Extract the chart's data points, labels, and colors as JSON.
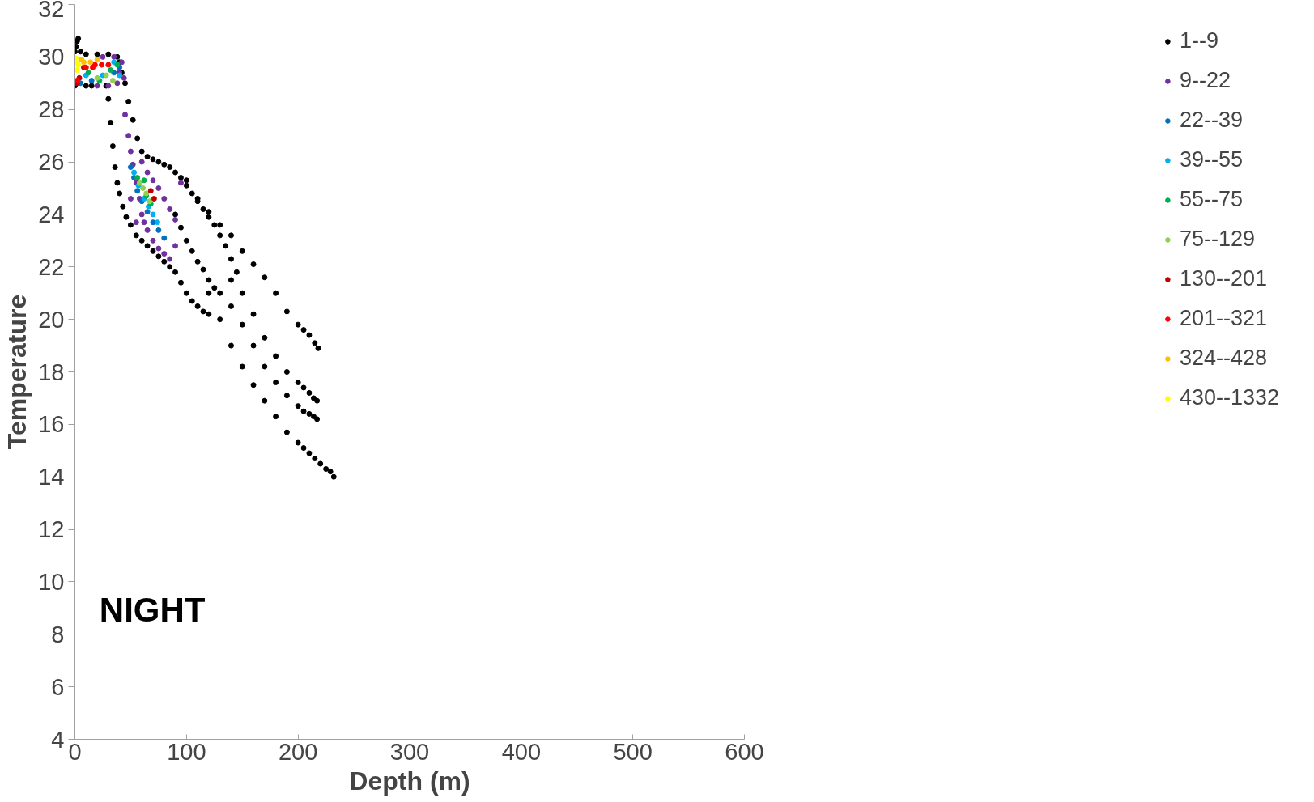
{
  "chart_data": {
    "type": "scatter",
    "xlabel": "Depth (m)",
    "ylabel": "Temperature",
    "xlim": [
      0,
      600
    ],
    "ylim": [
      4,
      32
    ],
    "xticks": [
      0,
      100,
      200,
      300,
      400,
      500,
      600
    ],
    "yticks": [
      4,
      6,
      8,
      10,
      12,
      14,
      16,
      18,
      20,
      22,
      24,
      26,
      28,
      30,
      32
    ],
    "grid": false,
    "legend": "right",
    "marker": "circle",
    "annotations": [
      "NIGHT"
    ],
    "series": [
      {
        "name": "1--9",
        "color": "#000000",
        "x": [
          2,
          3,
          1,
          0,
          5,
          10,
          20,
          30,
          38,
          0,
          10,
          15,
          28,
          40,
          42,
          30,
          32,
          34,
          36,
          38,
          40,
          43,
          46,
          50,
          55,
          60,
          65,
          70,
          75,
          80,
          85,
          90,
          95,
          100,
          105,
          110,
          115,
          120,
          45,
          48,
          52,
          56,
          60,
          65,
          70,
          75,
          80,
          85,
          90,
          95,
          100,
          105,
          110,
          115,
          120,
          125,
          130,
          135,
          140,
          145,
          90,
          95,
          100,
          105,
          110,
          115,
          120,
          125,
          130,
          140,
          100,
          110,
          120,
          130,
          140,
          150,
          160,
          170,
          180,
          190,
          200,
          205,
          210,
          215,
          218,
          140,
          150,
          160,
          170,
          180,
          190,
          200,
          205,
          210,
          214,
          217,
          150,
          160,
          170,
          180,
          190,
          200,
          205,
          210,
          214,
          217,
          120,
          130,
          140,
          150,
          160,
          170,
          180,
          190,
          200,
          205,
          210,
          215,
          220,
          225,
          229,
          232
        ],
        "values": [
          30.6,
          30.7,
          30.4,
          30.2,
          30.2,
          30.1,
          30.1,
          30.1,
          30.0,
          28.9,
          28.9,
          28.9,
          28.9,
          29.8,
          29.4,
          28.4,
          27.5,
          26.6,
          25.8,
          25.2,
          24.8,
          24.3,
          23.9,
          23.6,
          23.2,
          23.0,
          22.8,
          22.6,
          22.4,
          22.2,
          22.0,
          21.8,
          21.4,
          21.0,
          20.7,
          20.5,
          20.3,
          20.2,
          29.0,
          28.3,
          27.6,
          26.9,
          26.4,
          26.2,
          26.1,
          26.0,
          25.9,
          25.8,
          25.6,
          25.4,
          25.1,
          24.8,
          24.5,
          24.2,
          23.9,
          23.6,
          23.2,
          22.8,
          22.3,
          21.8,
          24.0,
          23.5,
          23.0,
          22.6,
          22.2,
          21.9,
          21.5,
          21.2,
          21.0,
          20.5,
          25.3,
          24.6,
          24.1,
          23.6,
          23.2,
          22.6,
          22.1,
          21.6,
          21.0,
          20.3,
          19.8,
          19.6,
          19.4,
          19.1,
          18.9,
          21.5,
          21.0,
          20.2,
          19.3,
          18.6,
          18.0,
          17.6,
          17.4,
          17.2,
          17.0,
          16.9,
          19.8,
          19.0,
          18.2,
          17.6,
          17.1,
          16.7,
          16.5,
          16.4,
          16.3,
          16.2,
          21.0,
          20.0,
          19.0,
          18.2,
          17.5,
          16.9,
          16.3,
          15.7,
          15.3,
          15.1,
          14.9,
          14.7,
          14.5,
          14.3,
          14.2,
          14.0
        ]
      },
      {
        "name": "9--22",
        "color": "#7030a0",
        "x": [
          20,
          30,
          38,
          40,
          42,
          44,
          25,
          35,
          45,
          48,
          50,
          52,
          55,
          58,
          60,
          62,
          65,
          70,
          75,
          80,
          85,
          90,
          60,
          65,
          70,
          75,
          80,
          85,
          90,
          55,
          50,
          95
        ],
        "values": [
          28.9,
          28.9,
          29.0,
          29.4,
          29.8,
          29.2,
          30.0,
          30.0,
          27.8,
          27.0,
          26.4,
          25.9,
          25.2,
          24.6,
          24.0,
          23.7,
          23.4,
          23.0,
          22.7,
          22.5,
          22.3,
          22.8,
          26.0,
          25.6,
          25.3,
          25.0,
          24.6,
          24.2,
          23.8,
          23.7,
          24.6,
          25.2
        ]
      },
      {
        "name": "22--39",
        "color": "#0070c0",
        "x": [
          5,
          15,
          35,
          40,
          50,
          53,
          56,
          60,
          65,
          70,
          75,
          80
        ],
        "values": [
          29.0,
          29.1,
          29.4,
          29.6,
          25.8,
          25.4,
          24.9,
          24.5,
          24.1,
          23.7,
          23.4,
          23.1
        ]
      },
      {
        "name": "39--55",
        "color": "#00b0f0",
        "x": [
          10,
          25,
          35,
          40,
          53,
          57,
          62,
          66,
          70,
          74
        ],
        "values": [
          29.3,
          29.3,
          29.8,
          29.3,
          25.6,
          25.1,
          24.6,
          24.3,
          24.0,
          23.7
        ]
      },
      {
        "name": "55--75",
        "color": "#00b050",
        "x": [
          12,
          22,
          32,
          38,
          56,
          62,
          64,
          68
        ],
        "values": [
          29.4,
          29.1,
          29.5,
          29.7,
          25.4,
          25.3,
          24.7,
          24.4
        ]
      },
      {
        "name": "75--129",
        "color": "#92d050",
        "x": [
          20,
          28,
          34,
          58,
          61,
          64,
          67
        ],
        "values": [
          29.2,
          29.3,
          29.1,
          25.2,
          25.0,
          24.8,
          24.5
        ]
      },
      {
        "name": "130--201",
        "color": "#c00000",
        "x": [
          2,
          4,
          8,
          68,
          71
        ],
        "values": [
          29.0,
          29.2,
          29.6,
          24.9,
          24.6
        ]
      },
      {
        "name": "201--321",
        "color": "#ff0000",
        "x": [
          10,
          16,
          18,
          24,
          30,
          2
        ],
        "values": [
          29.6,
          29.6,
          29.7,
          29.7,
          29.7,
          29.1
        ]
      },
      {
        "name": "324--428",
        "color": "#ffc000",
        "x": [
          6,
          8,
          14,
          20
        ],
        "values": [
          29.9,
          29.8,
          29.8,
          29.9
        ]
      },
      {
        "name": "430--1332",
        "color": "#ffff00",
        "x": [
          1,
          1,
          2,
          3
        ],
        "values": [
          29.95,
          29.8,
          29.5,
          29.7
        ]
      }
    ]
  }
}
